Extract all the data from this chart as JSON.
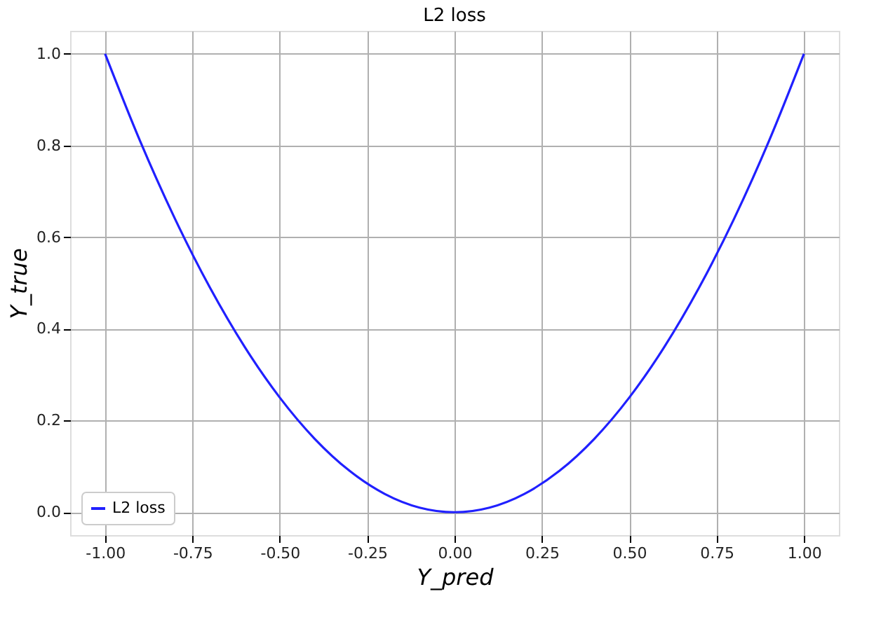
{
  "chart_data": {
    "type": "line",
    "title": "L2 loss",
    "xlabel": "Y_pred",
    "ylabel": "Y_true",
    "x": [
      -1.0,
      -0.9,
      -0.8,
      -0.7,
      -0.6,
      -0.5,
      -0.4,
      -0.3,
      -0.2,
      -0.1,
      0.0,
      0.1,
      0.2,
      0.3,
      0.4,
      0.5,
      0.6,
      0.7,
      0.8,
      0.9,
      1.0
    ],
    "series": [
      {
        "name": "L2 loss",
        "color": "#2020ff",
        "values": [
          1.0,
          0.81,
          0.64,
          0.49,
          0.36,
          0.25,
          0.16,
          0.09,
          0.04,
          0.01,
          0.0,
          0.01,
          0.04,
          0.09,
          0.16,
          0.25,
          0.36,
          0.49,
          0.64,
          0.81,
          1.0
        ]
      }
    ],
    "xlim": [
      -1.1,
      1.1
    ],
    "ylim": [
      -0.05,
      1.05
    ],
    "xticks": [
      {
        "value": -1.0,
        "label": "-1.00"
      },
      {
        "value": -0.75,
        "label": "-0.75"
      },
      {
        "value": -0.5,
        "label": "-0.50"
      },
      {
        "value": -0.25,
        "label": "-0.25"
      },
      {
        "value": 0.0,
        "label": "0.00"
      },
      {
        "value": 0.25,
        "label": "0.25"
      },
      {
        "value": 0.5,
        "label": "0.50"
      },
      {
        "value": 0.75,
        "label": "0.75"
      },
      {
        "value": 1.0,
        "label": "1.00"
      }
    ],
    "yticks": [
      {
        "value": 0.0,
        "label": "0.0"
      },
      {
        "value": 0.2,
        "label": "0.2"
      },
      {
        "value": 0.4,
        "label": "0.4"
      },
      {
        "value": 0.6,
        "label": "0.6"
      },
      {
        "value": 0.8,
        "label": "0.8"
      },
      {
        "value": 1.0,
        "label": "1.0"
      }
    ],
    "grid": true,
    "legend": "bottom left",
    "marker": "none",
    "line_style": "solid"
  }
}
